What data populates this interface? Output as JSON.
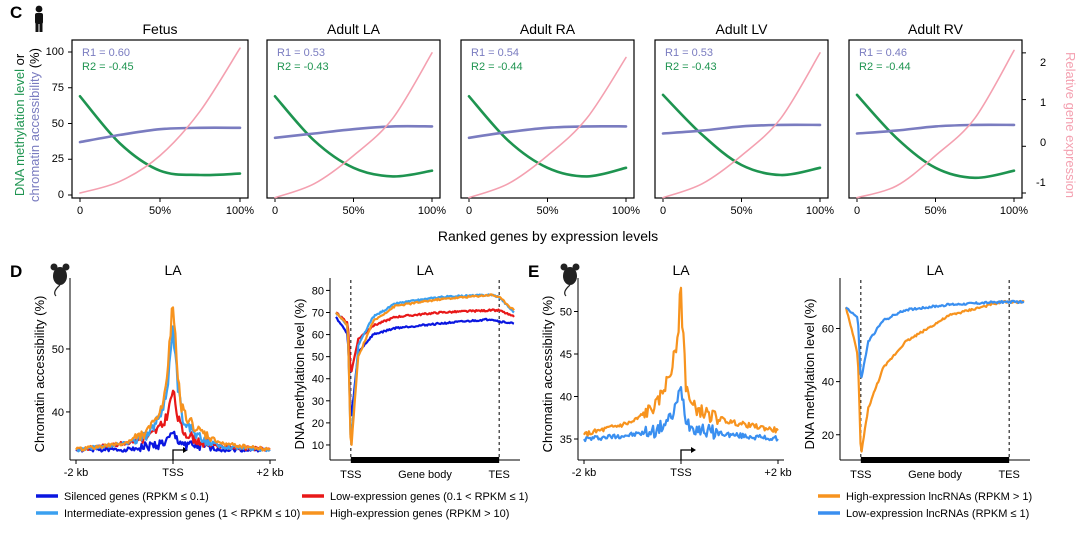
{
  "colors": {
    "green": "#1e9450",
    "purple": "#7a7cc0",
    "pink": "#f4a0b0",
    "silenced": "#0a16e0",
    "intermediate": "#3aa0f0",
    "low": "#e81818",
    "high": "#f7931e",
    "lnc_high": "#f7931e",
    "lnc_low": "#3a8ff0",
    "axis": "#000000"
  },
  "panel_c": {
    "label": "C",
    "icon": "human-figure-icon",
    "ylabel_left_parts": [
      "DNA methylation level",
      " or",
      "chromatin accessibility",
      " (%)"
    ],
    "ylabel_right": "Relative gene expression",
    "xlabel": "Ranked genes by expression levels",
    "xticks": [
      "0",
      "50%",
      "100%"
    ],
    "yticks_left": [
      "0",
      "25",
      "50",
      "75",
      "100"
    ],
    "yticks_right": [
      "-1",
      "0",
      "1",
      "2"
    ]
  },
  "panel_d": {
    "label": "D",
    "icon": "mouse-icon",
    "legend": [
      {
        "text": "Silenced genes (RPKM ≤ 0.1)",
        "color": "#0a16e0"
      },
      {
        "text": "Intermediate-expression genes (1 < RPKM ≤ 10)",
        "color": "#3aa0f0"
      },
      {
        "text": "Low-expression genes (0.1 < RPKM ≤ 1)",
        "color": "#e81818"
      },
      {
        "text": "High-expression genes (RPKM > 10)",
        "color": "#f7931e"
      }
    ]
  },
  "panel_e": {
    "label": "E",
    "icon": "mouse-icon",
    "legend": [
      {
        "text": "High-expression lncRNAs (RPKM > 1)",
        "color": "#f7931e"
      },
      {
        "text": "Low-expression lncRNAs (RPKM ≤ 1)",
        "color": "#3a8ff0"
      }
    ]
  },
  "chart_data": [
    {
      "id": "c_fetus",
      "type": "line",
      "title": "Fetus",
      "x": [
        0,
        25,
        50,
        75,
        100
      ],
      "xlim": [
        0,
        100
      ],
      "ylim": [
        0,
        100
      ],
      "y2lim": [
        -1,
        2
      ],
      "annotations": [
        "R1 = 0.60",
        "R2 = -0.45"
      ],
      "series": [
        {
          "name": "DNA methylation level",
          "color": "#1e9450",
          "axis": "left",
          "values": [
            69,
            36,
            17,
            14,
            15
          ]
        },
        {
          "name": "Chromatin accessibility",
          "color": "#7a7cc0",
          "axis": "left",
          "values": [
            37,
            42,
            46,
            47,
            47
          ]
        },
        {
          "name": "Relative gene expression",
          "color": "#f4a0b0",
          "axis": "right",
          "values": [
            -1,
            -0.75,
            -0.2,
            0.75,
            2.1
          ]
        }
      ]
    },
    {
      "id": "c_la",
      "type": "line",
      "title": "Adult LA",
      "x": [
        0,
        25,
        50,
        75,
        100
      ],
      "xlim": [
        0,
        100
      ],
      "ylim": [
        0,
        100
      ],
      "y2lim": [
        -1,
        2
      ],
      "annotations": [
        "R1 = 0.53",
        "R2 = -0.43"
      ],
      "series": [
        {
          "name": "DNA methylation level",
          "color": "#1e9450",
          "axis": "left",
          "values": [
            69,
            38,
            19,
            13,
            17
          ]
        },
        {
          "name": "Chromatin accessibility",
          "color": "#7a7cc0",
          "axis": "left",
          "values": [
            40,
            43,
            46,
            48,
            48
          ]
        },
        {
          "name": "Relative gene expression",
          "color": "#f4a0b0",
          "axis": "right",
          "values": [
            -1.1,
            -0.8,
            -0.2,
            0.6,
            2.0
          ]
        }
      ]
    },
    {
      "id": "c_ra",
      "type": "line",
      "title": "Adult RA",
      "x": [
        0,
        25,
        50,
        75,
        100
      ],
      "xlim": [
        0,
        100
      ],
      "ylim": [
        0,
        100
      ],
      "y2lim": [
        -1,
        2
      ],
      "annotations": [
        "R1 = 0.54",
        "R2 = -0.44"
      ],
      "series": [
        {
          "name": "DNA methylation level",
          "color": "#1e9450",
          "axis": "left",
          "values": [
            69,
            38,
            19,
            13,
            19
          ]
        },
        {
          "name": "Chromatin accessibility",
          "color": "#7a7cc0",
          "axis": "left",
          "values": [
            40,
            44,
            47,
            48,
            48
          ]
        },
        {
          "name": "Relative gene expression",
          "color": "#f4a0b0",
          "axis": "right",
          "values": [
            -1.1,
            -0.8,
            -0.2,
            0.6,
            1.9
          ]
        }
      ]
    },
    {
      "id": "c_lv",
      "type": "line",
      "title": "Adult LV",
      "x": [
        0,
        25,
        50,
        75,
        100
      ],
      "xlim": [
        0,
        100
      ],
      "ylim": [
        0,
        100
      ],
      "y2lim": [
        -1,
        2
      ],
      "annotations": [
        "R1 = 0.53",
        "R2 = -0.43"
      ],
      "series": [
        {
          "name": "DNA methylation level",
          "color": "#1e9450",
          "axis": "left",
          "values": [
            70,
            42,
            21,
            14,
            19
          ]
        },
        {
          "name": "Chromatin accessibility",
          "color": "#7a7cc0",
          "axis": "left",
          "values": [
            43,
            45,
            48,
            49,
            49
          ]
        },
        {
          "name": "Relative gene expression",
          "color": "#f4a0b0",
          "axis": "right",
          "values": [
            -1.1,
            -0.8,
            -0.2,
            0.6,
            2.0
          ]
        }
      ]
    },
    {
      "id": "c_rv",
      "type": "line",
      "title": "Adult RV",
      "x": [
        0,
        25,
        50,
        75,
        100
      ],
      "xlim": [
        0,
        100
      ],
      "ylim": [
        0,
        100
      ],
      "y2lim": [
        -1,
        2
      ],
      "annotations": [
        "R1 = 0.46",
        "R2 = -0.44"
      ],
      "series": [
        {
          "name": "DNA methylation level",
          "color": "#1e9450",
          "axis": "left",
          "values": [
            70,
            40,
            19,
            12,
            17
          ]
        },
        {
          "name": "Chromatin accessibility",
          "color": "#7a7cc0",
          "axis": "left",
          "values": [
            43,
            45,
            48,
            49,
            49
          ]
        },
        {
          "name": "Relative gene expression",
          "color": "#f4a0b0",
          "axis": "right",
          "values": [
            -1.1,
            -0.85,
            -0.2,
            0.6,
            2.05
          ]
        }
      ]
    },
    {
      "id": "d_access",
      "type": "line",
      "title": "LA",
      "ylabel": "Chromatin accessibility (%)",
      "xticks": [
        "-2 kb",
        "TSS",
        "+2 kb"
      ],
      "x": [
        -2000,
        -1000,
        -500,
        -200,
        -100,
        0,
        100,
        200,
        500,
        1000,
        2000
      ],
      "xlim": [
        -2000,
        2000
      ],
      "ylim": [
        33,
        60
      ],
      "yticks": [
        40,
        50
      ],
      "series": [
        {
          "name": "Silenced genes",
          "color": "#0a16e0",
          "values": [
            34,
            34,
            34.5,
            35,
            35.5,
            36.5,
            35.5,
            35,
            34.5,
            34,
            34
          ]
        },
        {
          "name": "Low-expression genes",
          "color": "#e81818",
          "values": [
            34,
            35,
            36,
            38,
            40,
            43.5,
            39,
            37,
            35.5,
            34.5,
            34
          ]
        },
        {
          "name": "Intermediate-expression genes",
          "color": "#3aa0f0",
          "values": [
            34,
            35,
            36.5,
            40,
            45,
            54,
            44,
            39,
            36,
            34.5,
            34
          ]
        },
        {
          "name": "High-expression genes",
          "color": "#f7931e",
          "values": [
            34,
            35,
            37,
            41,
            47,
            58,
            46,
            40,
            37,
            35,
            34
          ]
        }
      ]
    },
    {
      "id": "d_methyl",
      "type": "line",
      "title": "LA",
      "ylabel": "DNA methylation level (%)",
      "xlabel": "Gene body",
      "xticks": [
        "TSS",
        "TES"
      ],
      "x": [
        -10,
        -2,
        0,
        5,
        15,
        30,
        60,
        95,
        100,
        110
      ],
      "xlim": [
        -10,
        110
      ],
      "ylim": [
        5,
        82
      ],
      "yticks": [
        10,
        20,
        30,
        40,
        50,
        60,
        70,
        80
      ],
      "series": [
        {
          "name": "Silenced genes",
          "color": "#0a16e0",
          "values": [
            68,
            60,
            20,
            52,
            60,
            63,
            65,
            67,
            66,
            65
          ]
        },
        {
          "name": "Low-expression genes",
          "color": "#e81818",
          "values": [
            70,
            65,
            42,
            58,
            64,
            68,
            70,
            71,
            71,
            68
          ]
        },
        {
          "name": "Intermediate-expression genes",
          "color": "#3aa0f0",
          "values": [
            70,
            64,
            8,
            55,
            68,
            74,
            77,
            78,
            77,
            70
          ]
        },
        {
          "name": "High-expression genes",
          "color": "#f7931e",
          "values": [
            70,
            64,
            6,
            50,
            66,
            73,
            76,
            78,
            77,
            71
          ]
        }
      ]
    },
    {
      "id": "e_access",
      "type": "line",
      "title": "LA",
      "ylabel": "Chromatin accessibility (%)",
      "xticks": [
        "-2 kb",
        "TSS",
        "+2 kb"
      ],
      "x": [
        -2000,
        -1000,
        -500,
        -200,
        -100,
        0,
        100,
        200,
        500,
        1000,
        2000
      ],
      "xlim": [
        -2000,
        2000
      ],
      "ylim": [
        33,
        53
      ],
      "yticks": [
        35,
        40,
        45,
        50
      ],
      "series": [
        {
          "name": "High-expression lncRNAs",
          "color": "#f7931e",
          "values": [
            35.5,
            37,
            39,
            43,
            46,
            52,
            42,
            39,
            38,
            37,
            36
          ]
        },
        {
          "name": "Low-expression lncRNAs",
          "color": "#3a8ff0",
          "values": [
            35,
            35.5,
            36,
            37.5,
            39,
            41,
            37.5,
            36.5,
            36,
            35.5,
            35
          ]
        }
      ]
    },
    {
      "id": "e_methyl",
      "type": "line",
      "title": "LA",
      "ylabel": "DNA methylation level (%)",
      "xlabel": "Gene body",
      "xticks": [
        "TSS",
        "TES"
      ],
      "x": [
        -10,
        -2,
        0,
        5,
        15,
        30,
        60,
        95,
        100,
        110
      ],
      "xlim": [
        -10,
        110
      ],
      "ylim": [
        12,
        76
      ],
      "yticks": [
        20,
        40,
        60
      ],
      "series": [
        {
          "name": "High-expression lncRNAs",
          "color": "#f7931e",
          "values": [
            68,
            50,
            12,
            30,
            45,
            55,
            65,
            70,
            70,
            70
          ]
        },
        {
          "name": "Low-expression lncRNAs",
          "color": "#3a8ff0",
          "values": [
            68,
            64,
            40,
            55,
            63,
            67,
            69,
            70,
            70,
            70
          ]
        }
      ]
    }
  ]
}
